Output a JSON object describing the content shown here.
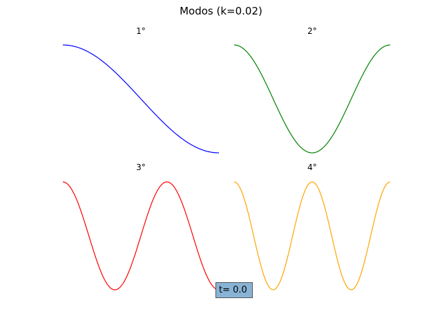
{
  "figure": {
    "title": "Modos  (k=0.02)",
    "time_label": "t= 0.0"
  },
  "colors": {
    "background": "#ffffff",
    "mode1": "#0000ff",
    "mode2": "#008000",
    "mode3": "#ff0000",
    "mode4": "#ffa500",
    "time_box_fill": "#89b3d5",
    "time_box_border": "#555555"
  },
  "chart_data": [
    {
      "type": "line",
      "title": "1°",
      "mode": 1,
      "color": "#0000ff",
      "xlabel": "",
      "ylabel": "",
      "grid": false,
      "axes_visible": false,
      "xlim": [
        0,
        3.14159
      ],
      "ylim": [
        -1,
        1
      ],
      "x": [
        0,
        0.3927,
        0.7854,
        1.1781,
        1.5708,
        1.9635,
        2.3562,
        2.7489,
        3.14159
      ],
      "y": [
        1,
        0.924,
        0.707,
        0.383,
        0,
        -0.383,
        -0.707,
        -0.924,
        -1
      ]
    },
    {
      "type": "line",
      "title": "2°",
      "mode": 2,
      "color": "#008000",
      "xlabel": "",
      "ylabel": "",
      "grid": false,
      "axes_visible": false,
      "xlim": [
        0,
        3.14159
      ],
      "ylim": [
        -1,
        1
      ],
      "x": [
        0,
        0.3927,
        0.7854,
        1.1781,
        1.5708,
        1.9635,
        2.3562,
        2.7489,
        3.14159
      ],
      "y": [
        1,
        0.707,
        0,
        -0.707,
        -1,
        -0.707,
        0,
        0.707,
        1
      ]
    },
    {
      "type": "line",
      "title": "3°",
      "mode": 3,
      "color": "#ff0000",
      "xlabel": "",
      "ylabel": "",
      "grid": false,
      "axes_visible": false,
      "xlim": [
        0,
        3.14159
      ],
      "ylim": [
        -1,
        1
      ],
      "x": [
        0,
        0.3927,
        0.7854,
        1.1781,
        1.5708,
        1.9635,
        2.3562,
        2.7489,
        3.14159
      ],
      "y": [
        1,
        0.383,
        -0.707,
        -0.924,
        0,
        0.924,
        0.707,
        -0.383,
        -1
      ]
    },
    {
      "type": "line",
      "title": "4°",
      "mode": 4,
      "color": "#ffa500",
      "xlabel": "",
      "ylabel": "",
      "grid": false,
      "axes_visible": false,
      "xlim": [
        0,
        3.14159
      ],
      "ylim": [
        -1,
        1
      ],
      "x": [
        0,
        0.3927,
        0.7854,
        1.1781,
        1.5708,
        1.9635,
        2.3562,
        2.7489,
        3.14159
      ],
      "y": [
        1,
        0,
        -1,
        0,
        1,
        0,
        -1,
        0,
        1
      ]
    }
  ]
}
